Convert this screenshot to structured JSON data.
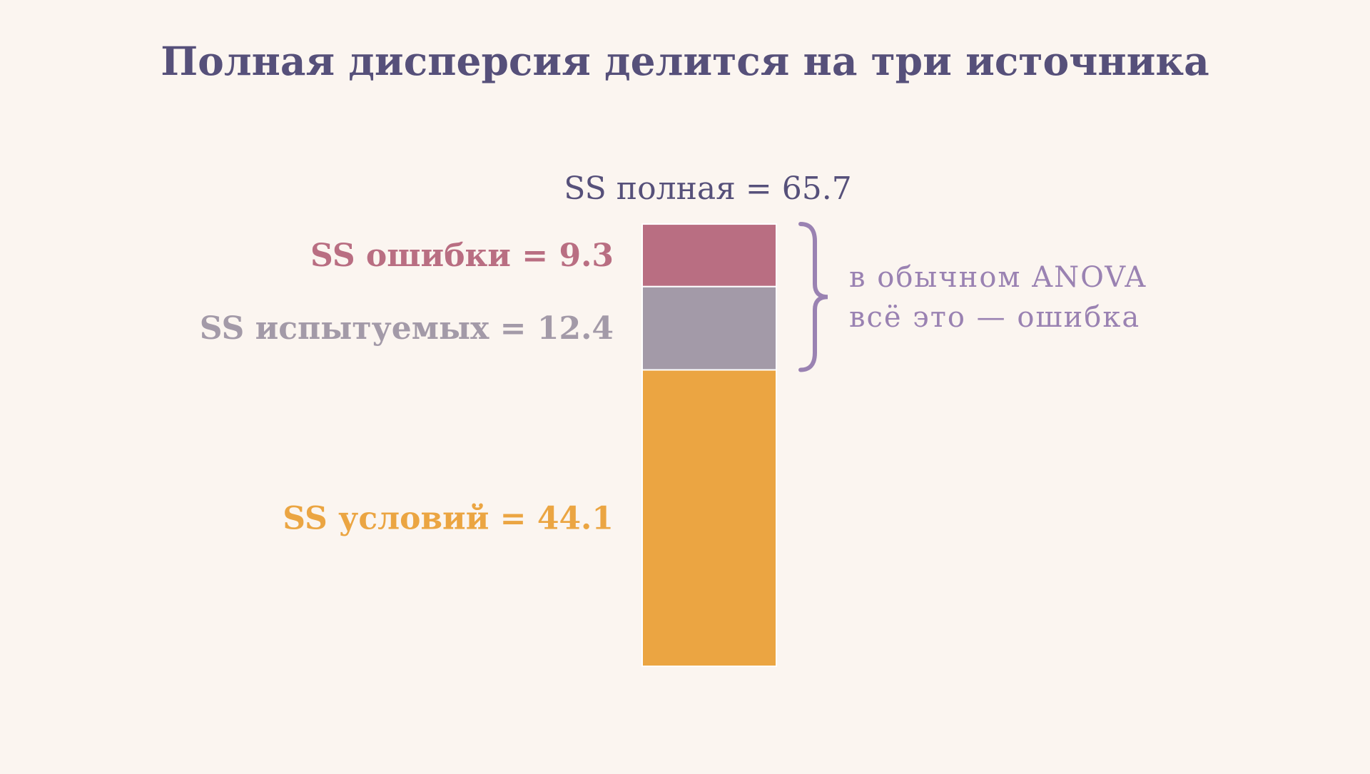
{
  "colors": {
    "background": "#FBF5F0",
    "title": "#56507A",
    "total_label": "#56507A",
    "bracket": "#9A82B2",
    "note": "#9A82B2"
  },
  "chart_data": {
    "type": "bar",
    "stacked": true,
    "title": "Полная дисперсия делится на три источника",
    "total": {
      "value": 65.7,
      "label": "SS полная = 65.7"
    },
    "segments": [
      {
        "name": "SS условий",
        "value": 44.1,
        "label": "SS условий = 44.1",
        "color": "#EBA542"
      },
      {
        "name": "SS испытуемых",
        "value": 12.4,
        "label": "SS испытуемых = 12.4",
        "color": "#A39AA8"
      },
      {
        "name": "SS ошибки",
        "value": 9.3,
        "label": "SS ошибки = 9.3",
        "color": "#B96E82"
      }
    ],
    "bracket_note": [
      "в обычном ANOVA",
      "всё это — ошибка"
    ],
    "bracket_spans": [
      "SS ошибки",
      "SS испытуемых"
    ],
    "grid": false,
    "legend": "none"
  }
}
